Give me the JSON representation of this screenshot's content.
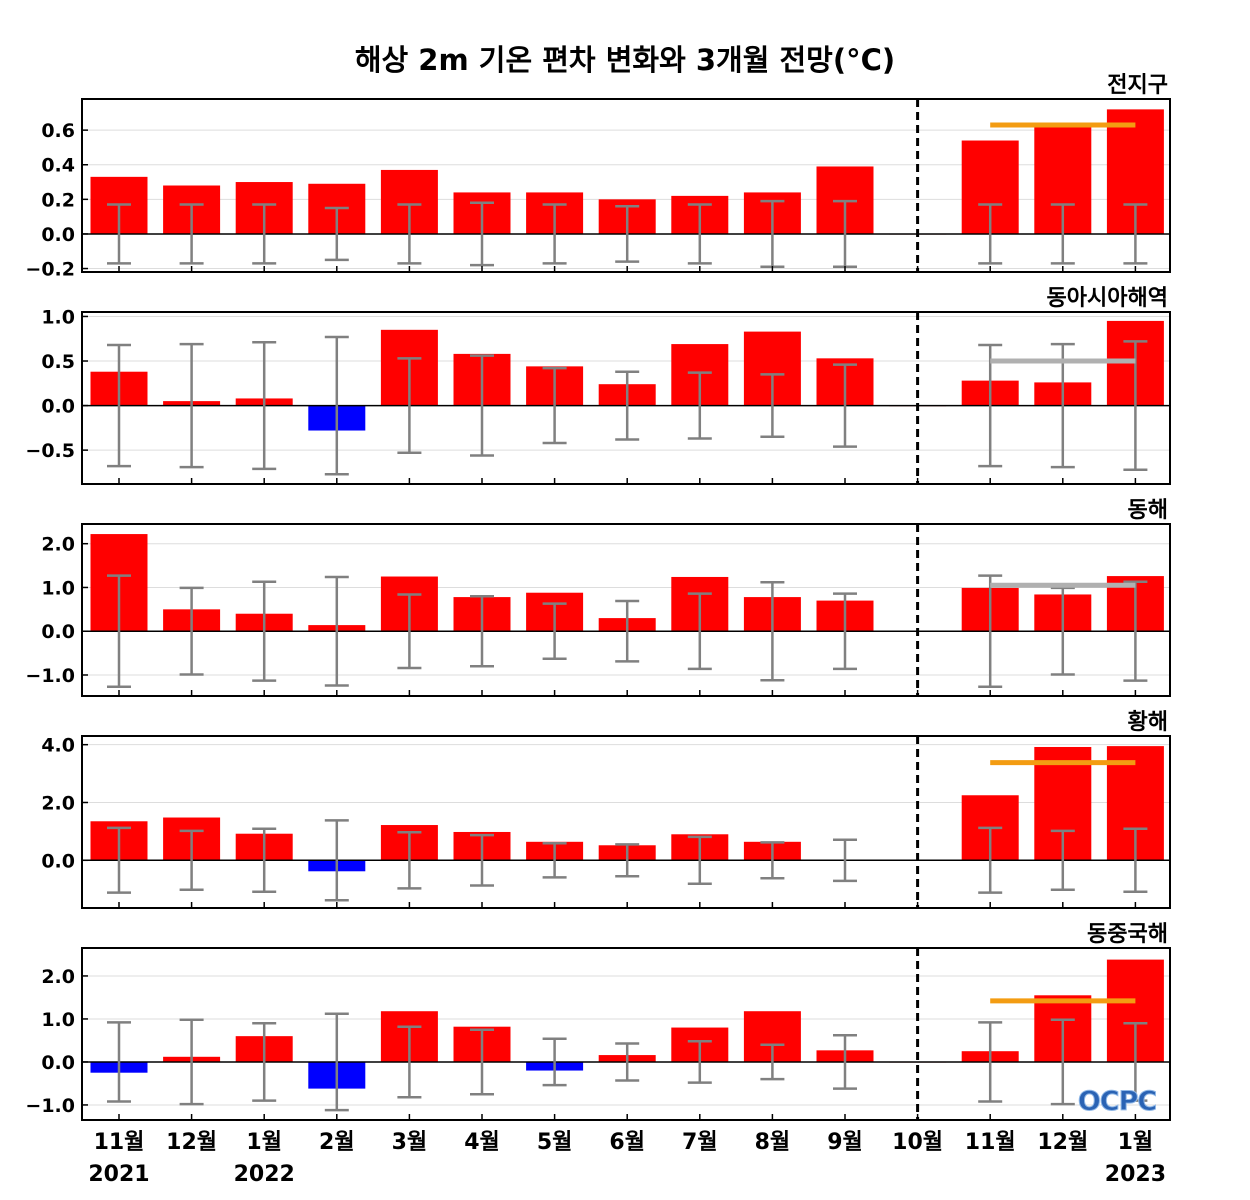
{
  "title": "해상 2m 기온 편차 변화와 3개월 전망(°C)",
  "logo_text": "OCPC",
  "colors": {
    "positive": "#ff0000",
    "negative": "#0000ff",
    "error_bar": "#808080",
    "forecast_orange": "#f39c12",
    "forecast_gray": "#b0b0b0",
    "grid": "#dddddd"
  },
  "x_labels": [
    "11월",
    "12월",
    "1월",
    "2월",
    "3월",
    "4월",
    "5월",
    "6월",
    "7월",
    "8월",
    "9월",
    "10월",
    "11월",
    "12월",
    "1월"
  ],
  "year_labels": [
    {
      "index": 0,
      "text": "2021"
    },
    {
      "index": 2,
      "text": "2022"
    },
    {
      "index": 14,
      "text": "2023"
    }
  ],
  "chart_data": [
    {
      "type": "bar",
      "region": "전지구",
      "ylim": [
        -0.22,
        0.78
      ],
      "yticks": [
        -0.2,
        0.0,
        0.2,
        0.4,
        0.6
      ],
      "tick_labels": [
        "−0.2",
        "0.0",
        "0.2",
        "0.4",
        "0.6"
      ],
      "values": [
        0.33,
        0.28,
        0.3,
        0.29,
        0.37,
        0.24,
        0.24,
        0.2,
        0.22,
        0.24,
        0.39,
        0.0,
        0.54,
        0.64,
        0.72
      ],
      "error": [
        0.17,
        0.17,
        0.17,
        0.15,
        0.17,
        0.18,
        0.17,
        0.16,
        0.17,
        0.19,
        0.19,
        null,
        0.17,
        0.17,
        0.17
      ],
      "forecast_line": {
        "value": 0.63,
        "color": "orange"
      }
    },
    {
      "type": "bar",
      "region": "동아시아해역",
      "ylim": [
        -0.88,
        1.05
      ],
      "yticks": [
        -0.5,
        0.0,
        0.5,
        1.0
      ],
      "tick_labels": [
        "−0.5",
        "0.0",
        "0.5",
        "1.0"
      ],
      "values": [
        0.38,
        0.05,
        0.08,
        -0.28,
        0.85,
        0.58,
        0.44,
        0.24,
        0.69,
        0.83,
        0.53,
        0.0,
        0.28,
        0.26,
        0.95
      ],
      "error": [
        0.68,
        0.69,
        0.71,
        0.77,
        0.53,
        0.56,
        0.42,
        0.38,
        0.37,
        0.35,
        0.46,
        null,
        0.68,
        0.69,
        0.72
      ],
      "forecast_line": {
        "value": 0.5,
        "color": "gray"
      }
    },
    {
      "type": "bar",
      "region": "동해",
      "ylim": [
        -1.48,
        2.45
      ],
      "yticks": [
        -1.0,
        0.0,
        1.0,
        2.0
      ],
      "tick_labels": [
        "−1.0",
        "0.0",
        "1.0",
        "2.0"
      ],
      "values": [
        2.22,
        0.5,
        0.4,
        0.14,
        1.25,
        0.78,
        0.88,
        0.3,
        1.24,
        0.78,
        0.7,
        0.0,
        0.99,
        0.84,
        1.26
      ],
      "error": [
        1.27,
        0.99,
        1.13,
        1.24,
        0.84,
        0.8,
        0.63,
        0.69,
        0.86,
        1.12,
        0.86,
        null,
        1.27,
        0.99,
        1.13
      ],
      "forecast_line": {
        "value": 1.05,
        "color": "gray"
      }
    },
    {
      "type": "bar",
      "region": "황해",
      "ylim": [
        -1.65,
        4.3
      ],
      "yticks": [
        0.0,
        2.0,
        4.0
      ],
      "tick_labels": [
        "0.0",
        "2.0",
        "4.0"
      ],
      "values": [
        1.35,
        1.48,
        0.92,
        -0.38,
        1.22,
        0.98,
        0.64,
        0.52,
        0.9,
        0.64,
        0.02,
        0.0,
        2.25,
        3.92,
        3.95
      ],
      "error": [
        1.12,
        1.02,
        1.09,
        1.38,
        0.97,
        0.87,
        0.59,
        0.55,
        0.81,
        0.62,
        0.71,
        null,
        1.12,
        1.02,
        1.09
      ],
      "forecast_line": {
        "value": 3.38,
        "color": "orange"
      }
    },
    {
      "type": "bar",
      "region": "동중국해",
      "ylim": [
        -1.35,
        2.65
      ],
      "yticks": [
        -1.0,
        0.0,
        1.0,
        2.0
      ],
      "tick_labels": [
        "−1.0",
        "0.0",
        "1.0",
        "2.0"
      ],
      "values": [
        -0.25,
        0.12,
        0.6,
        -0.62,
        1.18,
        0.82,
        -0.2,
        0.16,
        0.8,
        1.18,
        0.27,
        0.0,
        0.25,
        1.55,
        2.38
      ],
      "error": [
        0.92,
        0.98,
        0.9,
        1.12,
        0.82,
        0.75,
        0.54,
        0.43,
        0.48,
        0.4,
        0.62,
        null,
        0.92,
        0.98,
        0.9
      ],
      "forecast_line": {
        "value": 1.42,
        "color": "orange"
      }
    }
  ]
}
